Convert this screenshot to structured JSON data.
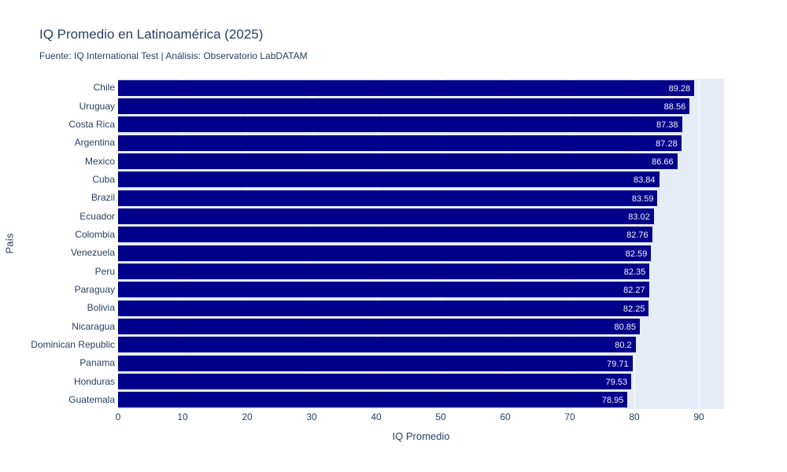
{
  "chart_data": {
    "type": "bar",
    "orientation": "horizontal",
    "title": "IQ Promedio en Latinoamérica (2025)",
    "subtitle": "Fuente: IQ International Test | Análisis: Observatorio LabDATAM",
    "xlabel": "IQ Promedio",
    "ylabel": "País",
    "categories": [
      "Chile",
      "Uruguay",
      "Costa Rica",
      "Argentina",
      "Mexico",
      "Cuba",
      "Brazil",
      "Ecuador",
      "Colombia",
      "Venezuela",
      "Peru",
      "Paraguay",
      "Bolivia",
      "Nicaragua",
      "Dominican Republic",
      "Panama",
      "Honduras",
      "Guatemala"
    ],
    "values": [
      89.28,
      88.56,
      87.38,
      87.28,
      86.66,
      83.84,
      83.59,
      83.02,
      82.76,
      82.59,
      82.35,
      82.27,
      82.25,
      80.85,
      80.2,
      79.71,
      79.53,
      78.95
    ],
    "value_labels": [
      "89.28",
      "88.56",
      "87.38",
      "87.28",
      "86.66",
      "83.84",
      "83.59",
      "83.02",
      "82.76",
      "82.59",
      "82.35",
      "82.27",
      "82.25",
      "80.85",
      "80.2",
      "79.71",
      "79.53",
      "78.95"
    ],
    "x_ticks": [
      0,
      10,
      20,
      30,
      40,
      50,
      60,
      70,
      80,
      90
    ],
    "x_tick_labels": [
      "0",
      "10",
      "20",
      "30",
      "40",
      "50",
      "60",
      "70",
      "80",
      "90"
    ],
    "xlim": [
      0,
      93.9
    ],
    "grid": true,
    "legend": "none",
    "colors": {
      "bar": "#00008b",
      "plot_background": "#e5ecf6",
      "paper_background": "#ffffff",
      "gridline": "#ffffff",
      "text": "#2a3f5f",
      "bar_label_text": "#f5f6fa"
    }
  }
}
